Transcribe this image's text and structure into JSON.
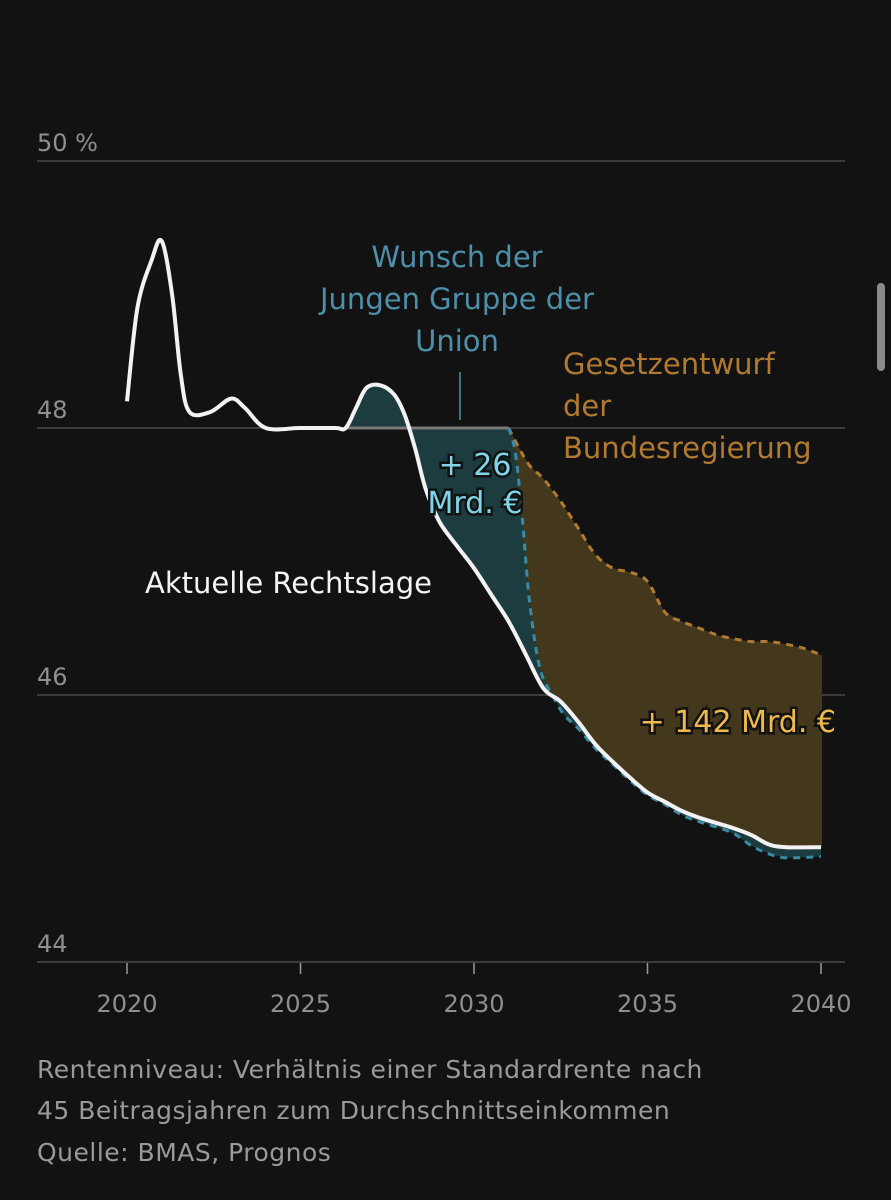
{
  "chart_data": {
    "type": "area",
    "xlim": [
      2020,
      2040
    ],
    "ylim": [
      44,
      50
    ],
    "x_ticks": [
      "2020",
      "2025",
      "2030",
      "2035",
      "2040"
    ],
    "y_ticks": [
      {
        "value": 50,
        "label": "50 %"
      },
      {
        "value": 48,
        "label": "48"
      },
      {
        "value": 46,
        "label": "46"
      },
      {
        "value": 44,
        "label": "44"
      }
    ],
    "series": [
      {
        "key": "aktuell",
        "name": "Aktuelle Rechtslage",
        "color": "#f2f2f2",
        "style": "solid",
        "points": [
          [
            2020,
            48.2
          ],
          [
            2020.3,
            48.9
          ],
          [
            2020.7,
            49.25
          ],
          [
            2021,
            49.4
          ],
          [
            2021.3,
            49.0
          ],
          [
            2021.55,
            48.4
          ],
          [
            2021.8,
            48.12
          ],
          [
            2022.4,
            48.12
          ],
          [
            2023,
            48.22
          ],
          [
            2023.4,
            48.15
          ],
          [
            2024,
            48.0
          ],
          [
            2025,
            48.0
          ],
          [
            2026,
            48.0
          ],
          [
            2026.3,
            48.0
          ],
          [
            2026.6,
            48.15
          ],
          [
            2026.9,
            48.3
          ],
          [
            2027.3,
            48.32
          ],
          [
            2027.7,
            48.25
          ],
          [
            2028,
            48.1
          ],
          [
            2028.3,
            47.85
          ],
          [
            2028.6,
            47.55
          ],
          [
            2029,
            47.3
          ],
          [
            2029.5,
            47.12
          ],
          [
            2030,
            46.95
          ],
          [
            2030.5,
            46.75
          ],
          [
            2031,
            46.55
          ],
          [
            2031.5,
            46.3
          ],
          [
            2032,
            46.05
          ],
          [
            2032.5,
            45.95
          ],
          [
            2033,
            45.8
          ],
          [
            2033.5,
            45.63
          ],
          [
            2034,
            45.5
          ],
          [
            2034.5,
            45.38
          ],
          [
            2035,
            45.27
          ],
          [
            2035.5,
            45.2
          ],
          [
            2036,
            45.13
          ],
          [
            2036.5,
            45.08
          ],
          [
            2037,
            45.04
          ],
          [
            2037.5,
            45.0
          ],
          [
            2038,
            44.95
          ],
          [
            2038.5,
            44.88
          ],
          [
            2039,
            44.86
          ],
          [
            2040,
            44.86
          ]
        ]
      },
      {
        "key": "union",
        "name": "Wunsch der Jungen Gruppe der Union",
        "color": "#3a8aa6",
        "style": "dashed",
        "points": [
          [
            2026.3,
            48.0
          ],
          [
            2031,
            48.0
          ],
          [
            2031.2,
            47.8
          ],
          [
            2031.4,
            47.3
          ],
          [
            2031.6,
            46.7
          ],
          [
            2031.9,
            46.2
          ],
          [
            2032.3,
            45.98
          ],
          [
            2032.6,
            45.85
          ],
          [
            2033,
            45.75
          ],
          [
            2033.5,
            45.6
          ],
          [
            2034,
            45.48
          ],
          [
            2034.5,
            45.36
          ],
          [
            2035,
            45.25
          ],
          [
            2035.5,
            45.18
          ],
          [
            2036,
            45.1
          ],
          [
            2036.5,
            45.05
          ],
          [
            2037,
            45.01
          ],
          [
            2037.5,
            44.96
          ],
          [
            2038,
            44.87
          ],
          [
            2038.5,
            44.81
          ],
          [
            2039,
            44.78
          ],
          [
            2040,
            44.79
          ]
        ]
      },
      {
        "key": "regierung",
        "name": "Gesetzentwurf der Bundesregierung",
        "color": "#b07a32",
        "style": "dashed",
        "points": [
          [
            2031,
            48.0
          ],
          [
            2031.3,
            47.85
          ],
          [
            2031.6,
            47.72
          ],
          [
            2032,
            47.62
          ],
          [
            2032.5,
            47.45
          ],
          [
            2033,
            47.25
          ],
          [
            2033.5,
            47.05
          ],
          [
            2034,
            46.95
          ],
          [
            2034.5,
            46.92
          ],
          [
            2035,
            46.85
          ],
          [
            2035.5,
            46.62
          ],
          [
            2036,
            46.55
          ],
          [
            2036.5,
            46.5
          ],
          [
            2037,
            46.45
          ],
          [
            2037.5,
            46.42
          ],
          [
            2038,
            46.4
          ],
          [
            2038.5,
            46.4
          ],
          [
            2039,
            46.38
          ],
          [
            2039.5,
            46.35
          ],
          [
            2040,
            46.3
          ]
        ]
      }
    ],
    "annotations": {
      "union_lines": [
        "Wunsch der",
        "Jungen Gruppe der",
        "Union"
      ],
      "regierung_lines": [
        "Gesetzentwurf",
        "der",
        "Bundesregierung"
      ],
      "aktuell_label": "Aktuelle Rechtslage",
      "union_value_lines": [
        "+ 26",
        "Mrd. €"
      ],
      "regierung_value": "+ 142 Mrd. €"
    },
    "colors": {
      "background": "#121212",
      "grid": "#4a4a4a",
      "union_fill": "#1d3c3f",
      "regierung_fill": "#43381b"
    },
    "grid": true
  },
  "footnote": {
    "line1": "Rentenniveau: Verhältnis einer Standardrente nach",
    "line2": "45 Beitragsjahren zum Durchschnittseinkommen",
    "line3": "Quelle: BMAS, Prognos"
  }
}
